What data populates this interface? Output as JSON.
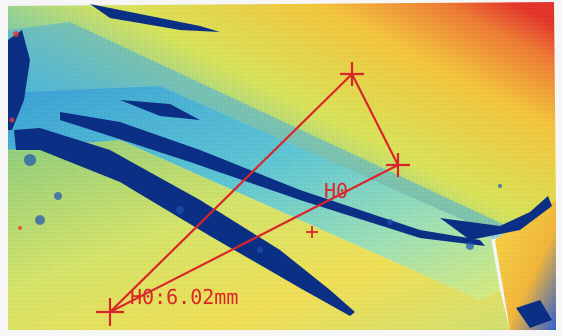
{
  "measurement": {
    "label": "H0",
    "readout_name": "H0",
    "readout_value": "6.02mm",
    "readout_text": "H0:6.02mm"
  },
  "colors": {
    "annotation": "#d8262a",
    "depth_low": "#2a9fd8",
    "depth_mid": "#ffe84a",
    "depth_high": "#e8382b",
    "hole_dark": "#0a2e80"
  },
  "icons": {
    "markers": [
      "crosshair-marker",
      "crosshair-marker",
      "crosshair-marker",
      "crosshair-marker",
      "center-plus-marker"
    ]
  }
}
